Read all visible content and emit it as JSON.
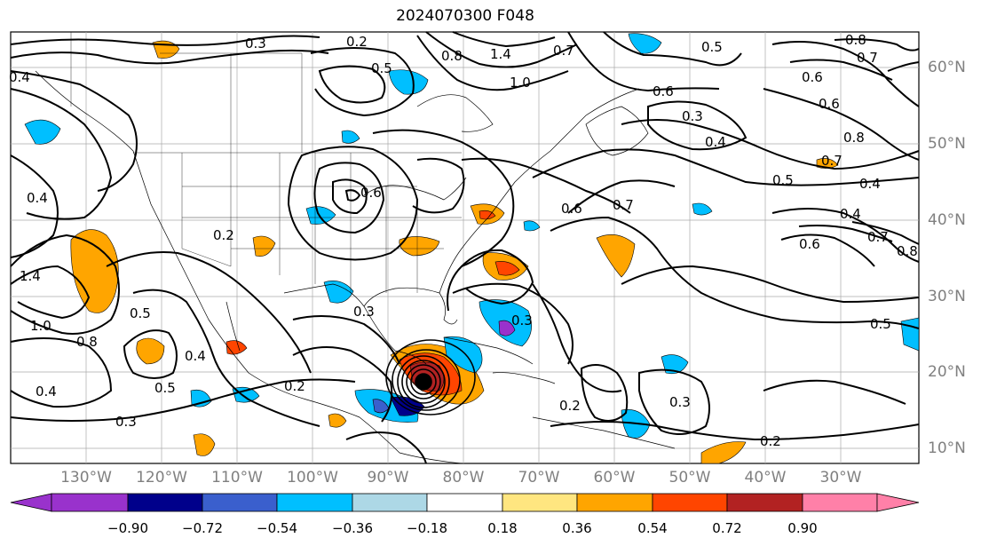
{
  "title": "2024070300 F048",
  "latitude_labels": [
    "60°N",
    "50°N",
    "40°N",
    "30°N",
    "20°N",
    "10°N"
  ],
  "longitude_labels": [
    "130°W",
    "120°W",
    "110°W",
    "100°W",
    "90°W",
    "80°W",
    "70°W",
    "60°W",
    "50°W",
    "40°W",
    "30°W"
  ],
  "contour_labels": [
    "0.3",
    "0.2",
    "0.5",
    "0.8",
    "1.4",
    "1.0",
    "0.7",
    "0.6",
    "0.3",
    "0.4",
    "0.8",
    "0.7",
    "0.4",
    "0.5",
    "0.4",
    "0.7",
    "0.6",
    "0.6",
    "0.7",
    "0.8",
    "0.6",
    "0.5",
    "0.3",
    "0.2",
    "0.4",
    "0.3",
    "0.5",
    "0.4",
    "0.2",
    "1.0",
    "0.8",
    "1.4",
    "0.5",
    "0.4",
    "0.3",
    "0.2",
    "0.3",
    "0.2",
    "0.5",
    "0.8",
    "0.6",
    "0.6",
    "0.7",
    "0.4"
  ],
  "colorbar": {
    "ticks": [
      "−0.90",
      "−0.72",
      "−0.54",
      "−0.36",
      "−0.18",
      "0.18",
      "0.36",
      "0.54",
      "0.72",
      "0.90"
    ],
    "colors": [
      "#9932CC",
      "#00008B",
      "#3A5FCD",
      "#00BFFF",
      "#ADD8E6",
      "#FFFFFF",
      "#FFE680",
      "#FFA500",
      "#FF4500",
      "#B22222",
      "#FF80A8"
    ]
  }
}
